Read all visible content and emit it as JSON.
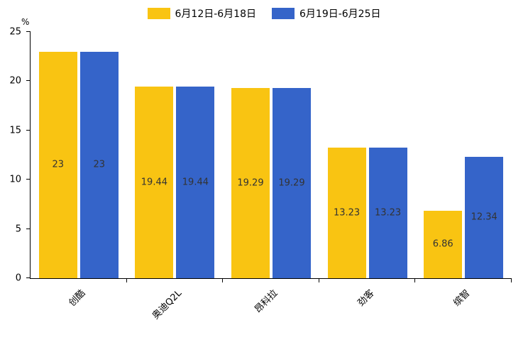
{
  "chart_data": {
    "type": "bar",
    "title": "",
    "xlabel": "",
    "ylabel": "%",
    "categories": [
      "创酷",
      "奥迪Q2L",
      "昂科拉",
      "劲客",
      "缤智"
    ],
    "series": [
      {
        "name": "6月12日-6月18日",
        "color": "#F9C412",
        "values": [
          23,
          19.44,
          19.29,
          13.23,
          6.86
        ]
      },
      {
        "name": "6月19日-6月25日",
        "color": "#3564C9",
        "values": [
          23,
          19.44,
          19.29,
          13.23,
          12.34
        ]
      }
    ],
    "ylim": [
      0,
      25
    ],
    "yticks": [
      0,
      5,
      10,
      15,
      20,
      25
    ],
    "legend_position": "top",
    "grid": false,
    "bar_label_color": "#333333",
    "axis_color": "#000000"
  }
}
